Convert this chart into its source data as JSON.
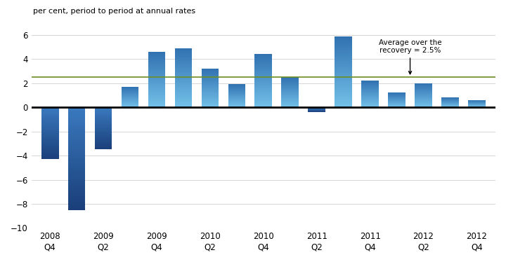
{
  "values": [
    -4.3,
    -8.5,
    -3.5,
    1.7,
    4.6,
    4.9,
    3.2,
    1.9,
    4.4,
    2.5,
    -0.4,
    5.9,
    2.2,
    1.2,
    2.0,
    0.8,
    0.6
  ],
  "tick_positions_idx": [
    0,
    2,
    4,
    6,
    8,
    10,
    12,
    14,
    16
  ],
  "tick_labels": [
    "2008\nQ4",
    "2009\nQ2",
    "2009\nQ4",
    "2010\nQ2",
    "2010\nQ4",
    "2011\nQ2",
    "2011\nQ4",
    "2012\nQ2",
    "2012\nQ4"
  ],
  "ylabel": "per cent, period to period at annual rates",
  "ylim": [
    -10,
    6
  ],
  "yticks": [
    -10,
    -8,
    -6,
    -4,
    -2,
    0,
    2,
    4,
    6
  ],
  "average_line": 2.5,
  "average_label": "Average over the\nrecovery = 2.5%",
  "bar_color_positive_top": "#72c0e8",
  "bar_color_positive_bot": "#3070b0",
  "bar_color_negative_top": "#3a7abf",
  "bar_color_negative_bot": "#1a3f7a",
  "avg_line_color": "#6b8e23",
  "background_color": "#ffffff",
  "bar_width": 0.65
}
